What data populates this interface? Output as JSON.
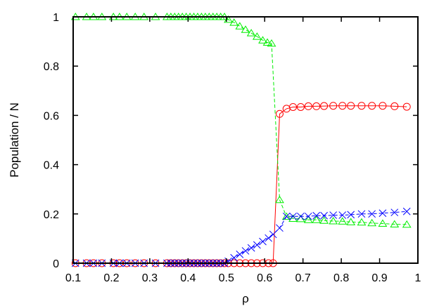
{
  "chart_data": {
    "type": "line",
    "title": "",
    "xlabel": "ρ",
    "ylabel": "Population / N",
    "xlim": [
      0.1,
      1
    ],
    "ylim": [
      0,
      1
    ],
    "xticks": [
      "0.1",
      "0.2",
      "0.3",
      "0.4",
      "0.5",
      "0.6",
      "0.7",
      "0.8",
      "0.9",
      "1"
    ],
    "xtick_values": [
      0.1,
      0.2,
      0.3,
      0.4,
      0.5,
      0.6,
      0.7,
      0.8,
      0.9,
      1
    ],
    "yticks": [
      "0",
      "0.2",
      "0.4",
      "0.6",
      "0.8",
      "1"
    ],
    "ytick_values": [
      0,
      0.2,
      0.4,
      0.6,
      0.8,
      1
    ],
    "grid": false,
    "legend": "none",
    "series": [
      {
        "color": "#ff0000",
        "marker": "circle",
        "line": "solid",
        "x": [
          0.106,
          0.135,
          0.153,
          0.175,
          0.205,
          0.221,
          0.24,
          0.262,
          0.285,
          0.315,
          0.345,
          0.355,
          0.365,
          0.375,
          0.385,
          0.395,
          0.405,
          0.415,
          0.425,
          0.435,
          0.445,
          0.455,
          0.465,
          0.475,
          0.485,
          0.495,
          0.505,
          0.52,
          0.535,
          0.55,
          0.565,
          0.58,
          0.595,
          0.61,
          0.622,
          0.639,
          0.657,
          0.674,
          0.694,
          0.714,
          0.735,
          0.755,
          0.779,
          0.803,
          0.825,
          0.853,
          0.88,
          0.908,
          0.939,
          0.971
        ],
        "y": [
          0,
          0,
          0,
          0,
          0,
          0,
          0,
          0,
          0,
          0,
          0,
          0,
          0,
          0,
          0,
          0,
          0,
          0,
          0,
          0,
          0,
          0,
          0,
          0,
          0,
          0,
          0,
          0,
          0,
          0,
          0,
          0,
          0,
          0,
          0,
          0.606,
          0.627,
          0.634,
          0.634,
          0.637,
          0.637,
          0.638,
          0.639,
          0.639,
          0.639,
          0.639,
          0.639,
          0.639,
          0.637,
          0.635
        ]
      },
      {
        "color": "#00ee00",
        "marker": "triangle",
        "line": "dashed",
        "x": [
          0.106,
          0.135,
          0.153,
          0.175,
          0.205,
          0.221,
          0.24,
          0.262,
          0.285,
          0.315,
          0.345,
          0.355,
          0.365,
          0.375,
          0.385,
          0.395,
          0.405,
          0.415,
          0.425,
          0.435,
          0.445,
          0.455,
          0.465,
          0.475,
          0.485,
          0.495,
          0.505,
          0.52,
          0.535,
          0.55,
          0.565,
          0.58,
          0.595,
          0.607,
          0.618,
          0.639,
          0.657,
          0.674,
          0.694,
          0.714,
          0.735,
          0.755,
          0.779,
          0.803,
          0.825,
          0.853,
          0.88,
          0.908,
          0.939,
          0.971
        ],
        "y": [
          1,
          1,
          1,
          1,
          1,
          1,
          1,
          1,
          1,
          1,
          1,
          1,
          1,
          1,
          1,
          1,
          1,
          1,
          1,
          1,
          1,
          1,
          1,
          1,
          1,
          1,
          0.989,
          0.977,
          0.962,
          0.948,
          0.934,
          0.92,
          0.905,
          0.896,
          0.892,
          0.257,
          0.189,
          0.181,
          0.18,
          0.176,
          0.176,
          0.173,
          0.171,
          0.17,
          0.167,
          0.166,
          0.163,
          0.161,
          0.158,
          0.157
        ]
      },
      {
        "color": "#0000ff",
        "marker": "cross",
        "line": "dashed",
        "x": [
          0.106,
          0.135,
          0.153,
          0.175,
          0.205,
          0.221,
          0.24,
          0.262,
          0.285,
          0.315,
          0.345,
          0.355,
          0.365,
          0.375,
          0.385,
          0.395,
          0.405,
          0.415,
          0.425,
          0.435,
          0.445,
          0.455,
          0.465,
          0.475,
          0.485,
          0.495,
          0.505,
          0.52,
          0.535,
          0.55,
          0.565,
          0.58,
          0.595,
          0.61,
          0.622,
          0.639,
          0.657,
          0.674,
          0.694,
          0.714,
          0.735,
          0.755,
          0.779,
          0.803,
          0.825,
          0.853,
          0.88,
          0.908,
          0.939,
          0.971
        ],
        "y": [
          0,
          0,
          0,
          0,
          0,
          0,
          0,
          0,
          0,
          0,
          0,
          0,
          0,
          0,
          0,
          0,
          0,
          0,
          0,
          0,
          0,
          0,
          0,
          0,
          0,
          0,
          0.008,
          0.022,
          0.036,
          0.05,
          0.062,
          0.074,
          0.088,
          0.102,
          0.117,
          0.143,
          0.19,
          0.19,
          0.19,
          0.19,
          0.193,
          0.193,
          0.195,
          0.195,
          0.197,
          0.2,
          0.2,
          0.203,
          0.206,
          0.21
        ]
      }
    ]
  }
}
